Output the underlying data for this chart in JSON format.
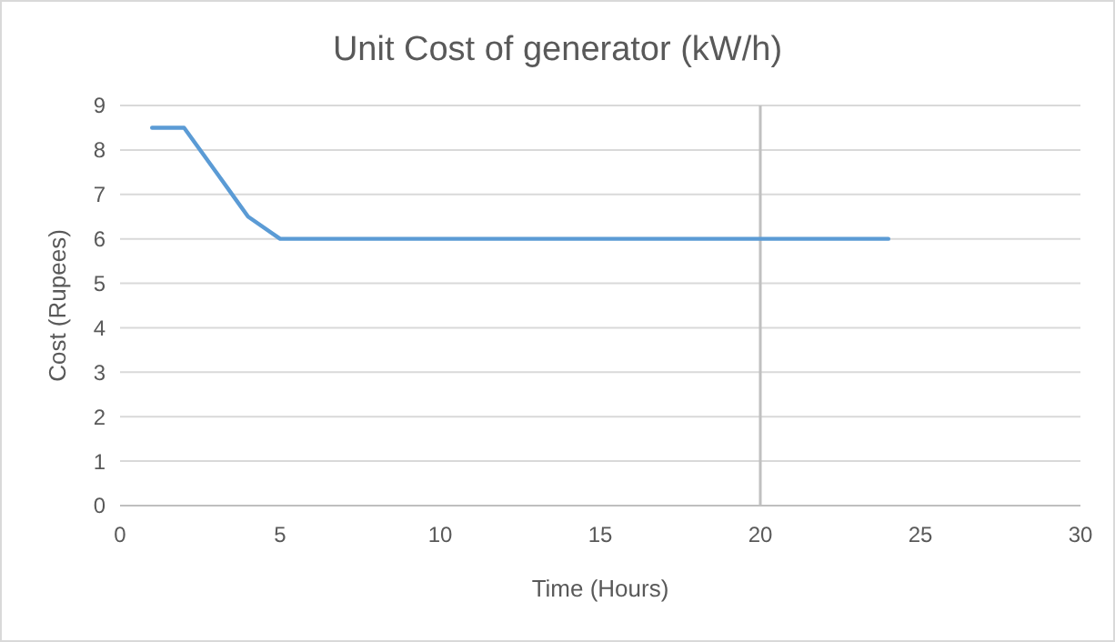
{
  "chart_data": {
    "type": "line",
    "title": "Unit Cost of generator (kW/h)",
    "xlabel": "Time (Hours)",
    "ylabel": "Cost (Rupees)",
    "x": [
      1,
      2,
      3,
      4,
      5,
      6,
      7,
      8,
      9,
      10,
      11,
      12,
      13,
      14,
      15,
      16,
      17,
      18,
      19,
      20,
      21,
      22,
      23,
      24
    ],
    "series": [
      {
        "color": "#5b9bd5",
        "values": [
          8.5,
          8.5,
          7.5,
          6.5,
          6,
          6,
          6,
          6,
          6,
          6,
          6,
          6,
          6,
          6,
          6,
          6,
          6,
          6,
          6,
          6,
          6,
          6,
          6,
          6
        ]
      }
    ],
    "xlim": [
      0,
      30
    ],
    "xticks": [
      0,
      5,
      10,
      15,
      20,
      25,
      30
    ],
    "ylim": [
      0,
      9
    ],
    "yticks": [
      0,
      1,
      2,
      3,
      4,
      5,
      6,
      7,
      8,
      9
    ],
    "grid": "y",
    "marker": "none",
    "line_style": "solid",
    "ref_lines": [
      {
        "axis": "x",
        "value": 20,
        "color": "#c0c0c0"
      }
    ]
  }
}
